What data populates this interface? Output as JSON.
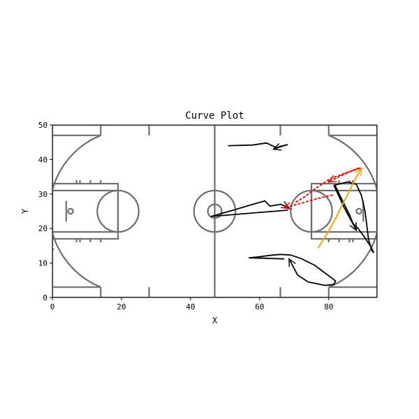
{
  "chart_data": {
    "type": "line",
    "title": "Curve Plot",
    "xlabel": "X",
    "ylabel": "Y",
    "xlim": [
      0,
      94
    ],
    "ylim": [
      0,
      50
    ],
    "xticks": [
      0,
      20,
      40,
      60,
      80
    ],
    "yticks": [
      0,
      10,
      20,
      30,
      40,
      50
    ],
    "grid": false,
    "legend": "none",
    "background": "basketball court",
    "colors": {
      "court": "#6e6e6e",
      "black": "#000000",
      "red": "#ff0000",
      "orange": "#ffa500"
    },
    "series": [
      {
        "style": "black",
        "arrow": "end",
        "points": [
          [
            51,
            44
          ],
          [
            58,
            44.2
          ],
          [
            62,
            44.8
          ],
          [
            64,
            43.8
          ],
          [
            65,
            43.4
          ],
          [
            66,
            43.8
          ],
          [
            67.5,
            44.2
          ],
          [
            68,
            44.3
          ],
          [
            67,
            44
          ],
          [
            64,
            43
          ]
        ]
      },
      {
        "style": "black",
        "arrow": "end",
        "points": [
          [
            46,
            23.5
          ],
          [
            53,
            25.5
          ],
          [
            58,
            27
          ],
          [
            61.5,
            28
          ],
          [
            63,
            26.5
          ],
          [
            66,
            27
          ],
          [
            67.5,
            26.5
          ],
          [
            68.5,
            26
          ]
        ]
      },
      {
        "style": "black",
        "arrow": "none",
        "points": [
          [
            46,
            23.5
          ],
          [
            68,
            25.3
          ]
        ]
      },
      {
        "style": "black",
        "arrow": "end",
        "points": [
          [
            57,
            11.5
          ],
          [
            60,
            11.8
          ],
          [
            63,
            12.2
          ],
          [
            66,
            12.5
          ],
          [
            69,
            12.3
          ],
          [
            72,
            11.3
          ],
          [
            76,
            9.3
          ],
          [
            80,
            6.3
          ],
          [
            82,
            4.8
          ],
          [
            81.5,
            3.8
          ],
          [
            79,
            3.5
          ],
          [
            74,
            4.5
          ],
          [
            71,
            6.5
          ],
          [
            68.5,
            11.2
          ]
        ]
      },
      {
        "style": "black",
        "arrow": "none",
        "points": [
          [
            57,
            11.5
          ],
          [
            67,
            11.2
          ]
        ]
      },
      {
        "style": "black",
        "arrow": "end",
        "points": [
          [
            81.5,
            32.5
          ],
          [
            85.5,
            33.5
          ],
          [
            88,
            32.8
          ],
          [
            89.5,
            29.5
          ],
          [
            90.5,
            25
          ],
          [
            91,
            21
          ],
          [
            91.5,
            17
          ],
          [
            92.5,
            13.5
          ],
          [
            93,
            13.1
          ],
          [
            92,
            15
          ],
          [
            90,
            18
          ],
          [
            88.5,
            20
          ],
          [
            87,
            21.5
          ],
          [
            86,
            24
          ],
          [
            84,
            28
          ],
          [
            83,
            30
          ],
          [
            82,
            32.2
          ],
          [
            81.5,
            32.5
          ],
          [
            84.5,
            26
          ],
          [
            88,
            19.5
          ]
        ]
      },
      {
        "style": "red-dotted",
        "arrow": "end",
        "points": [
          [
            88.5,
            37.5
          ],
          [
            85,
            36
          ],
          [
            82.5,
            34.8
          ],
          [
            80,
            33.5
          ]
        ]
      },
      {
        "style": "red-dotted",
        "arrow": "end",
        "points": [
          [
            81,
            29.7
          ],
          [
            76,
            28.5
          ],
          [
            72,
            27.3
          ],
          [
            68.5,
            26.4
          ],
          [
            67,
            26
          ]
        ]
      },
      {
        "style": "red-dotted",
        "arrow": "none",
        "points": [
          [
            89,
            37.5
          ],
          [
            86,
            36.5
          ],
          [
            80.5,
            34.5
          ],
          [
            76,
            31.5
          ],
          [
            72.5,
            28.8
          ],
          [
            70.5,
            27.7
          ]
        ]
      },
      {
        "style": "orange",
        "arrow": "end",
        "points": [
          [
            77,
            14.5
          ],
          [
            79.5,
            18.5
          ],
          [
            82,
            23
          ],
          [
            84,
            27
          ],
          [
            86,
            31
          ],
          [
            88,
            35
          ],
          [
            89.5,
            37.5
          ]
        ]
      }
    ]
  }
}
